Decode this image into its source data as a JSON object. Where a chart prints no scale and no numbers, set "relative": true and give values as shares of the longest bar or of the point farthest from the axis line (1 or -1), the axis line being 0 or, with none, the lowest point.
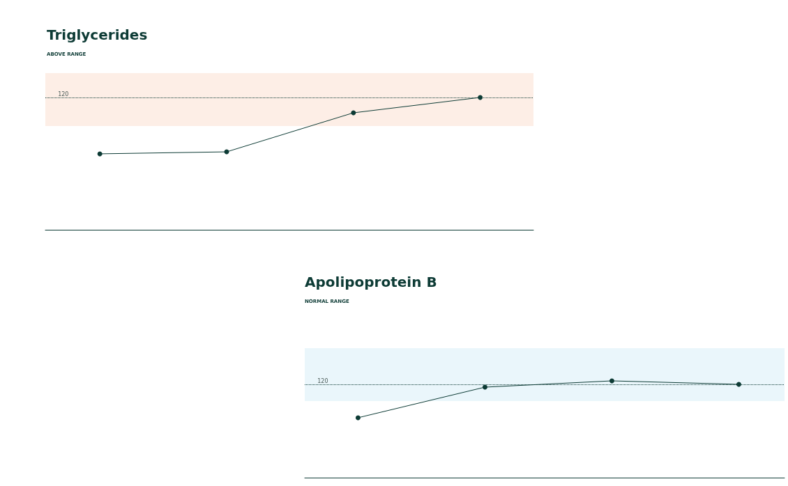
{
  "chart_data": [
    {
      "type": "line",
      "title": "Triglycerides",
      "subtitle": "ABOVE RANGE",
      "relative": true,
      "categories": [
        null,
        null,
        null,
        null
      ],
      "series": [
        {
          "color": "#0d3b35",
          "values": [
            0.574,
            0.589,
            0.884,
            1
          ]
        }
      ],
      "marker": "circle",
      "line_style": "solid",
      "grid": false,
      "tick_labels": false,
      "annotations": [
        {
          "text": "120",
          "y": 1
        }
      ],
      "ref_lines": [
        {
          "axis": "y",
          "value": 1,
          "line_style": "dotted",
          "color": "#0d3b35"
        }
      ],
      "bands": [
        {
          "axis": "y",
          "from": 0.784,
          "to": 1.184,
          "color": "#fdeee6"
        }
      ]
    },
    {
      "type": "line",
      "title": "Apolipoprotein B",
      "subtitle": "NORMAL RANGE",
      "relative": true,
      "categories": [
        null,
        null,
        null,
        null
      ],
      "series": [
        {
          "color": "#0d3b35",
          "values": [
            0.619,
            0.935,
            1,
            0.964
          ]
        }
      ],
      "marker": "circle",
      "line_style": "solid",
      "grid": false,
      "tick_labels": false,
      "annotations": [
        {
          "text": "120",
          "y": 0.964
        }
      ],
      "ref_lines": [
        {
          "axis": "y",
          "value": 0.964,
          "line_style": "dotted",
          "color": "#0d3b35"
        }
      ],
      "bands": [
        {
          "axis": "y",
          "from": 0.791,
          "to": 1.338,
          "color": "#eaf6fb"
        }
      ]
    }
  ]
}
